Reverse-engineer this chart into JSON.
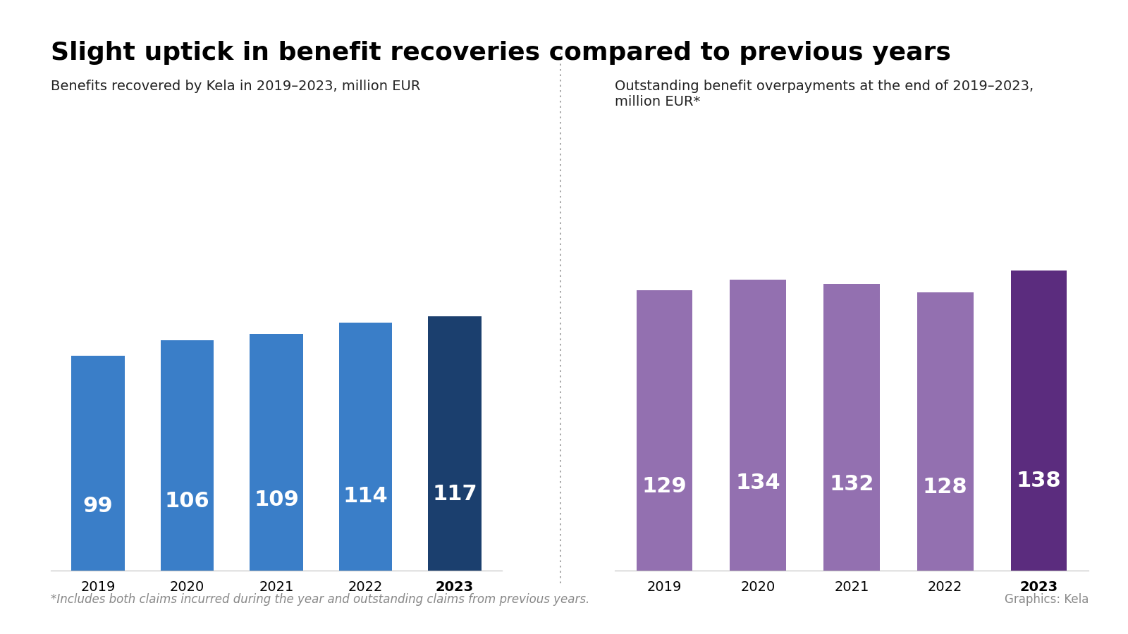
{
  "title": "Slight uptick in benefit recoveries compared to previous years",
  "title_fontsize": 26,
  "subtitle_left": "Benefits recovered by Kela in 2019–2023, million EUR",
  "subtitle_right": "Outstanding benefit overpayments at the end of 2019–2023,\nmillion EUR*",
  "years": [
    "2019",
    "2020",
    "2021",
    "2022",
    "2023"
  ],
  "left_values": [
    99,
    106,
    109,
    114,
    117
  ],
  "right_values": [
    129,
    134,
    132,
    128,
    138
  ],
  "left_colors": [
    "#3a7ec8",
    "#3a7ec8",
    "#3a7ec8",
    "#3a7ec8",
    "#1b3f6e"
  ],
  "right_colors": [
    "#9370b0",
    "#9370b0",
    "#9370b0",
    "#9370b0",
    "#5b2c7e"
  ],
  "footnote": "*Includes both claims incurred during the year and outstanding claims from previous years.",
  "credit": "Graphics: Kela",
  "bar_label_fontsize": 22,
  "axis_tick_fontsize": 14,
  "subtitle_fontsize": 14,
  "footnote_fontsize": 12,
  "background_color": "#ffffff",
  "left_ylim": [
    0,
    210
  ],
  "right_ylim": [
    0,
    210
  ]
}
